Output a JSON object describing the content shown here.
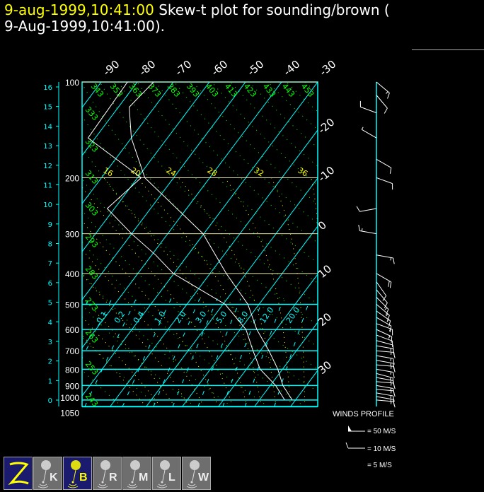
{
  "header": {
    "title_datetime": "9-aug-1999,10:41:00",
    "title_text": " Skew-t plot for sounding/brown (",
    "subtitle": "9-Aug-1999,10:41:00)."
  },
  "colors": {
    "isotherm": "#00ffff",
    "dry_adiabat": "#00ff00",
    "moist_adiabat": "#ffff00",
    "mixing_ratio": "#00ffff",
    "trace": "#ffffff",
    "background": "#000000",
    "button_selected": "#1a1a6e",
    "button": "#6e6e6e"
  },
  "chart_data": {
    "type": "line",
    "chart_kind": "skew-t log-p",
    "y_scale": "log pressure (hPa)",
    "pressure_levels": [
      100,
      200,
      300,
      400,
      500,
      600,
      700,
      800,
      900,
      1000,
      1050
    ],
    "pressure_labels": [
      "100",
      "200",
      "300",
      "400",
      "500",
      "600",
      "700",
      "800",
      "900",
      "1000",
      "1050"
    ],
    "height_km_labels": [
      "0",
      "1",
      "2",
      "3",
      "4",
      "5",
      "6",
      "7",
      "8",
      "9",
      "10",
      "11",
      "12",
      "13",
      "14",
      "15",
      "16"
    ],
    "isotherm_labels_top": [
      "-90",
      "-80",
      "-70",
      "-60",
      "-50",
      "-40",
      "-30"
    ],
    "isotherm_labels_right": [
      "-20",
      "-10",
      "0",
      "10",
      "20",
      "30"
    ],
    "dry_adiabat_labels_left": [
      "243",
      "253",
      "263",
      "273",
      "283",
      "293",
      "303",
      "313",
      "323",
      "333"
    ],
    "dry_adiabat_labels_top": [
      "343",
      "353",
      "363",
      "373",
      "383",
      "393",
      "403",
      "413",
      "423",
      "433",
      "443",
      "453"
    ],
    "moist_adiabat_labels": [
      "16",
      "20",
      "24",
      "28",
      "32",
      "36"
    ],
    "mixing_ratio_labels": [
      "0.1",
      "0.2",
      "0.4",
      "1.0",
      "2.0",
      "3.0",
      "5.0",
      "8.0",
      "12.0",
      "20.0"
    ],
    "temperature": {
      "p": [
        1000,
        900,
        800,
        700,
        600,
        500,
        400,
        300,
        200,
        150,
        120,
        100
      ],
      "t": [
        29.1,
        23.5,
        18.7,
        12.4,
        4.6,
        -3.1,
        -15.5,
        -30.2,
        -58,
        -70,
        -77,
        -75.5
      ]
    },
    "dewpoint": {
      "p": [
        1000,
        900,
        800,
        700,
        600,
        500,
        400,
        350,
        300,
        250,
        200,
        150,
        100
      ],
      "td": [
        27,
        21.5,
        13.8,
        8,
        1.6,
        -9.4,
        -30.2,
        -38.9,
        -50,
        -62,
        -59,
        -82,
        -82.7
      ]
    },
    "winds": {
      "p": [
        1000,
        975,
        950,
        925,
        900,
        875,
        850,
        825,
        800,
        775,
        750,
        725,
        700,
        675,
        650,
        625,
        600,
        575,
        550,
        525,
        500,
        475,
        450,
        425,
        400,
        350,
        300,
        250,
        200,
        175,
        150,
        125,
        110,
        100
      ],
      "dir": [
        95,
        100,
        100,
        95,
        100,
        95,
        100,
        105,
        100,
        95,
        100,
        100,
        95,
        100,
        105,
        110,
        115,
        110,
        120,
        125,
        130,
        135,
        140,
        145,
        120,
        100,
        280,
        260,
        110,
        120,
        300,
        290,
        140,
        130
      ],
      "speed": [
        15,
        15,
        15,
        15,
        15,
        15,
        15,
        15,
        15,
        15,
        15,
        15,
        15,
        15,
        10,
        10,
        15,
        15,
        10,
        15,
        15,
        15,
        10,
        10,
        20,
        15,
        15,
        10,
        10,
        10,
        5,
        10,
        10,
        15
      ]
    }
  },
  "legend": {
    "title": "WINDS PROFILE",
    "items": [
      {
        "label": "= 50 M/S",
        "speed": 50
      },
      {
        "label": "= 10 M/S",
        "speed": 10
      },
      {
        "label": "= 5 M/S",
        "speed": 5
      }
    ]
  },
  "toolbar": {
    "buttons": [
      {
        "letter": "",
        "icon": "z-logo-icon",
        "selected": true
      },
      {
        "letter": "K",
        "icon": "balloon-icon",
        "selected": false
      },
      {
        "letter": "B",
        "icon": "balloon-icon",
        "selected": true
      },
      {
        "letter": "R",
        "icon": "balloon-icon",
        "selected": false
      },
      {
        "letter": "M",
        "icon": "balloon-icon",
        "selected": false
      },
      {
        "letter": "L",
        "icon": "balloon-icon",
        "selected": false
      },
      {
        "letter": "W",
        "icon": "balloon-icon",
        "selected": false
      }
    ]
  }
}
